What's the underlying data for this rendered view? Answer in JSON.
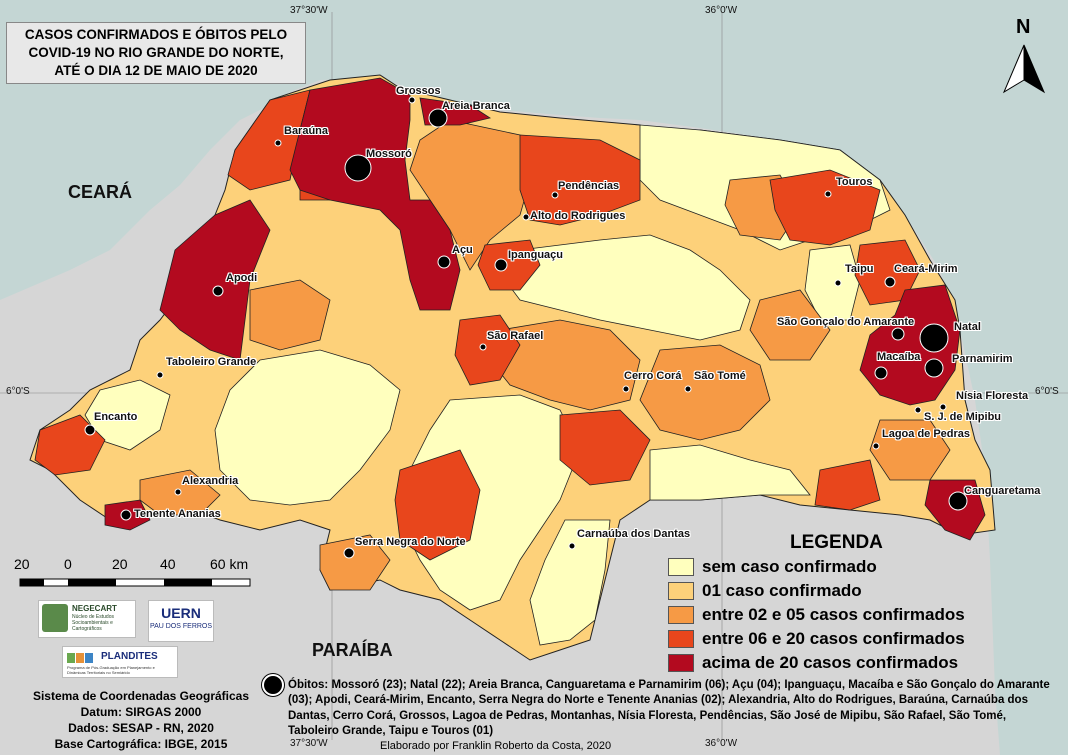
{
  "title": {
    "line1": "CASOS CONFIRMADOS E ÓBITOS PELO",
    "line2": "COVID-19 NO RIO GRANDE DO NORTE,",
    "line3": "ATÉ O DIA 12 DE MAIO DE 2020"
  },
  "coordinates": {
    "top_left": "37°30'W",
    "top_right": "36°0'W",
    "bottom_left": "37°30'W",
    "bottom_right": "36°0'W",
    "left_lat": "6°0'S",
    "right_lat": "6°0'S"
  },
  "north_arrow": {
    "label": "N",
    "icon": "north-arrow-icon"
  },
  "regions": {
    "ceara": "CEARÁ",
    "paraiba": "PARAÍBA"
  },
  "cities": [
    {
      "name": "Grossos"
    },
    {
      "name": "Areia Branca"
    },
    {
      "name": "Baraúna"
    },
    {
      "name": "Mossoró"
    },
    {
      "name": "Pendências"
    },
    {
      "name": "Alto do Rodrigues"
    },
    {
      "name": "Touros"
    },
    {
      "name": "Açu"
    },
    {
      "name": "Ipanguaçu"
    },
    {
      "name": "Apodi"
    },
    {
      "name": "Taipu"
    },
    {
      "name": "Ceará-Mirim"
    },
    {
      "name": "São Gonçalo do Amarante"
    },
    {
      "name": "Natal"
    },
    {
      "name": "São Rafael"
    },
    {
      "name": "Macaíba"
    },
    {
      "name": "Parnamirim"
    },
    {
      "name": "Taboleiro Grande"
    },
    {
      "name": "Cerro Corá"
    },
    {
      "name": "São Tomé"
    },
    {
      "name": "Nísia Floresta"
    },
    {
      "name": "S. J. de Mipibu"
    },
    {
      "name": "Encanto"
    },
    {
      "name": "Lagoa de Pedras"
    },
    {
      "name": "Alexandria"
    },
    {
      "name": "Canguaretama"
    },
    {
      "name": "Tenente Ananias"
    },
    {
      "name": "Carnaúba dos Dantas"
    },
    {
      "name": "Serra Negra do Norte"
    }
  ],
  "legend": {
    "title": "LEGENDA",
    "items": [
      {
        "label": "sem caso confirmado",
        "color": "#ffffbe"
      },
      {
        "label": "01 caso confirmado",
        "color": "#fdd17a"
      },
      {
        "label": "entre 02 e 05 casos confirmados",
        "color": "#f69a45"
      },
      {
        "label": "entre 06 e 20 casos confirmados",
        "color": "#e8461c"
      },
      {
        "label": "acima de 20 casos confirmados",
        "color": "#b30a1f"
      }
    ]
  },
  "scale": {
    "labels": [
      "20",
      "0",
      "20",
      "40",
      "60 km"
    ]
  },
  "logos": {
    "negecart": "NEGECART",
    "negecart_sub": "Núcleo de Estudos Socioambientais e Cartográficos",
    "uern": "UERN",
    "uern_sub": "PAU DOS FERROS",
    "plandites": "PLANDITES",
    "plandites_sub": "Programa de Pós-Graduação em Planejamento e Dinâmicas Territoriais no Semiárido"
  },
  "info": {
    "line1": "Sistema de Coordenadas Geográficas",
    "line2": "Datum: SIRGAS 2000",
    "line3": "Dados: SESAP - RN, 2020",
    "line4": "Base Cartográfica: IBGE, 2015"
  },
  "deaths_text": "Óbitos: Mossoró (23); Natal (22); Areia Branca, Canguaretama e Parnamirim (06); Açu (04);  Ipanguaçu, Macaíba e São Gonçalo do Amarante (03); Apodi, Ceará-Mirim, Encanto, Serra Negra do Norte e Tenente Ananias (02); Alexandria, Alto do Rodrigues,  Baraúna, Carnaúba dos Dantas, Cerro Corá, Grossos, Lagoa de Pedras, Montanhas, Nísia Floresta, Pendências, São José de Mipibu, São Rafael, São Tomé, Taboleiro Grande, Taipu e Touros (01)",
  "credit": "Elaborado por Franklin Roberto da Costa, 2020",
  "colors": {
    "sea": "#c4d6d4",
    "land": "#d6d6d6",
    "border": "#111111"
  }
}
